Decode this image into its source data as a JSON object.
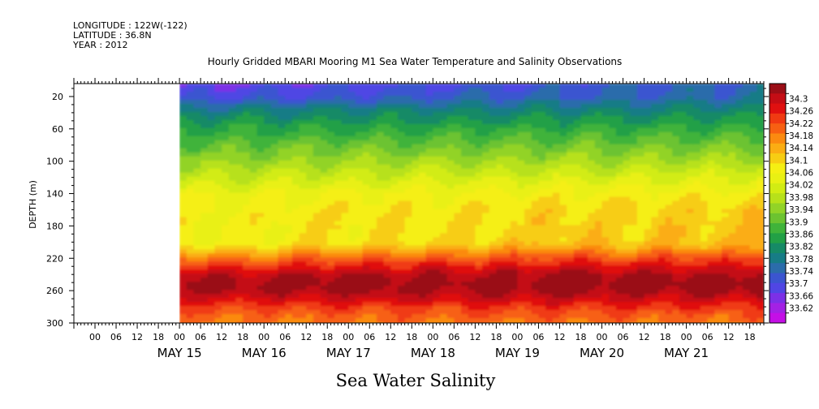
{
  "header": {
    "longitude": "LONGITUDE : 122W(-122)",
    "latitude": "LATITUDE : 36.8N",
    "year": "YEAR : 2012"
  },
  "chart_data": {
    "type": "heatmap",
    "title": "Hourly Gridded MBARI Mooring M1 Sea Water Temperature and Salinity Observations",
    "xlabel": "Sea Water Salinity",
    "ylabel": "DEPTH (m)",
    "y_inverted": true,
    "ylim": [
      300,
      4
    ],
    "yticks": [
      20,
      60,
      100,
      140,
      180,
      220,
      260,
      300
    ],
    "x_start_hours": -30,
    "x_end_hours": 166,
    "data_start_hours": 0,
    "hour_tick_labels": [
      {
        "h": -24,
        "t": "00"
      },
      {
        "h": -18,
        "t": "06"
      },
      {
        "h": -12,
        "t": "12"
      },
      {
        "h": -6,
        "t": "18"
      },
      {
        "h": 0,
        "t": "00"
      },
      {
        "h": 6,
        "t": "06"
      },
      {
        "h": 12,
        "t": "12"
      },
      {
        "h": 18,
        "t": "18"
      },
      {
        "h": 24,
        "t": "00"
      },
      {
        "h": 30,
        "t": "06"
      },
      {
        "h": 36,
        "t": "12"
      },
      {
        "h": 42,
        "t": "18"
      },
      {
        "h": 48,
        "t": "00"
      },
      {
        "h": 54,
        "t": "06"
      },
      {
        "h": 60,
        "t": "12"
      },
      {
        "h": 66,
        "t": "18"
      },
      {
        "h": 72,
        "t": "00"
      },
      {
        "h": 78,
        "t": "06"
      },
      {
        "h": 84,
        "t": "12"
      },
      {
        "h": 90,
        "t": "18"
      },
      {
        "h": 96,
        "t": "00"
      },
      {
        "h": 102,
        "t": "06"
      },
      {
        "h": 108,
        "t": "12"
      },
      {
        "h": 114,
        "t": "18"
      },
      {
        "h": 120,
        "t": "00"
      },
      {
        "h": 126,
        "t": "06"
      },
      {
        "h": 132,
        "t": "12"
      },
      {
        "h": 138,
        "t": "18"
      },
      {
        "h": 144,
        "t": "00"
      },
      {
        "h": 150,
        "t": "06"
      },
      {
        "h": 156,
        "t": "12"
      },
      {
        "h": 162,
        "t": "18"
      }
    ],
    "day_labels": [
      {
        "h": 0,
        "t": "MAY 15"
      },
      {
        "h": 24,
        "t": "MAY 16"
      },
      {
        "h": 48,
        "t": "MAY 17"
      },
      {
        "h": 72,
        "t": "MAY 18"
      },
      {
        "h": 96,
        "t": "MAY 19"
      },
      {
        "h": 120,
        "t": "MAY 20"
      },
      {
        "h": 144,
        "t": "MAY 21"
      }
    ],
    "profile_depths": [
      4,
      20,
      40,
      60,
      80,
      100,
      120,
      140,
      160,
      180,
      200,
      210,
      220,
      230,
      240,
      250,
      260,
      270,
      280,
      290,
      300
    ],
    "profile_early": [
      33.7,
      33.73,
      33.82,
      33.87,
      33.91,
      33.95,
      33.99,
      34.04,
      34.05,
      34.05,
      34.05,
      34.1,
      34.16,
      34.21,
      34.26,
      34.28,
      34.27,
      34.24,
      34.2,
      34.17,
      34.16
    ],
    "profile_late": [
      33.77,
      33.78,
      33.83,
      33.88,
      33.92,
      33.97,
      34.02,
      34.06,
      34.09,
      34.1,
      34.11,
      34.15,
      34.2,
      34.24,
      34.28,
      34.3,
      34.29,
      34.25,
      34.21,
      34.18,
      34.16
    ],
    "colorbar": {
      "levels": [
        "34.3",
        "34.26",
        "34.22",
        "34.18",
        "34.14",
        "34.1",
        "34.06",
        "34.02",
        "33.98",
        "33.94",
        "33.9",
        "33.86",
        "33.82",
        "33.78",
        "33.74",
        "33.7",
        "33.66",
        "33.62"
      ],
      "colors": [
        "#9a0e16",
        "#c40d15",
        "#e01010",
        "#f03a12",
        "#f76012",
        "#fb8a10",
        "#fbad13",
        "#f7cd13",
        "#f5ef13",
        "#e9f013",
        "#d2ec13",
        "#b7e11a",
        "#92d327",
        "#6cc330",
        "#40b33a",
        "#22a046",
        "#168a66",
        "#177c86",
        "#2b6cab",
        "#3b55d0",
        "#5046e4",
        "#7c30e6",
        "#a321e4",
        "#c40fe6"
      ]
    }
  }
}
